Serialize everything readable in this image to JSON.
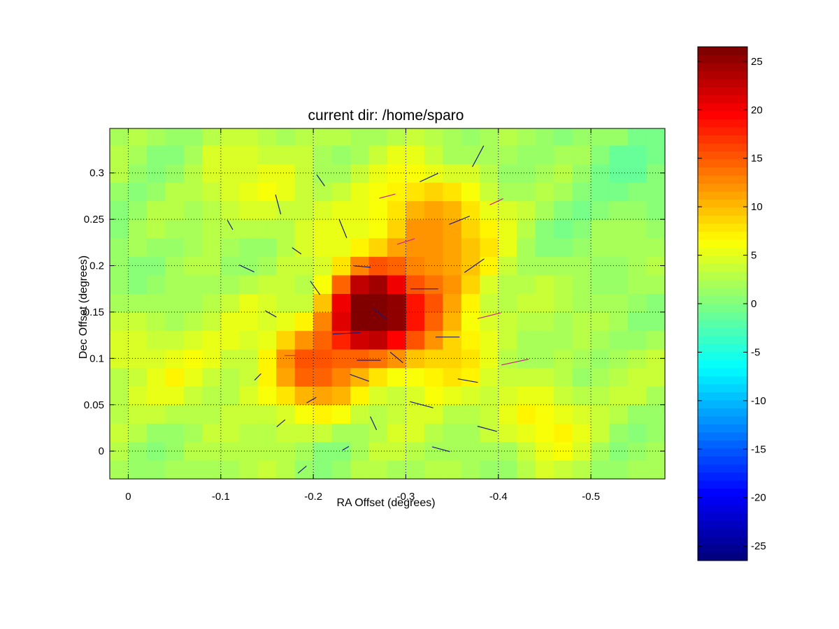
{
  "chart_data": {
    "type": "heatmap",
    "title": "current dir: /home/sparo",
    "xlabel": "RA Offset (degrees)",
    "ylabel": "Dec Offset (degrees)",
    "xlim": [
      0.02,
      -0.58
    ],
    "ylim": [
      -0.03,
      0.348
    ],
    "x_reversed": true,
    "grid": true,
    "grid_style": "dotted",
    "x_ticks": [
      0,
      -0.1,
      -0.2,
      -0.3,
      -0.4,
      -0.5
    ],
    "x_tick_labels": [
      "0",
      "-0.1",
      "-0.2",
      "-0.3",
      "-0.4",
      "-0.5"
    ],
    "y_ticks": [
      0,
      0.05,
      0.1,
      0.15,
      0.2,
      0.25,
      0.3
    ],
    "y_tick_labels": [
      "0",
      "0.05",
      "0.1",
      "0.15",
      "0.2",
      "0.25",
      "0.3"
    ],
    "colorbar": {
      "range": [
        -26.5,
        26.5
      ],
      "ticks": [
        25,
        20,
        15,
        10,
        5,
        0,
        -5,
        -10,
        -15,
        -20,
        -25
      ],
      "tick_labels": [
        "25",
        "20",
        "15",
        "10",
        "5",
        "0",
        "-5",
        "-10",
        "-15",
        "-20",
        "-25"
      ],
      "colormap": "jet"
    },
    "field_grid_step": 0.02,
    "field_components": [
      {
        "amp": 27.0,
        "ra": -0.258,
        "dec": 0.152,
        "sigma_ra": 0.028,
        "sigma_dec": 0.03
      },
      {
        "amp": 12.0,
        "ra": -0.2,
        "dec": 0.09,
        "sigma_ra": 0.035,
        "sigma_dec": 0.035
      },
      {
        "amp": 11.0,
        "ra": -0.32,
        "dec": 0.15,
        "sigma_ra": 0.045,
        "sigma_dec": 0.06
      },
      {
        "amp": 7.0,
        "ra": -0.33,
        "dec": 0.25,
        "sigma_ra": 0.05,
        "sigma_dec": 0.04
      },
      {
        "amp": 5.0,
        "ra": -0.45,
        "dec": 0.035,
        "sigma_ra": 0.035,
        "sigma_dec": 0.03
      },
      {
        "amp": 3.0,
        "ra": -0.14,
        "dec": 0.28,
        "sigma_ra": 0.06,
        "sigma_dec": 0.04
      },
      {
        "amp": 3.0,
        "ra": -0.05,
        "dec": 0.1,
        "sigma_ra": 0.08,
        "sigma_dec": 0.05
      },
      {
        "amp": -2.0,
        "ra": -0.53,
        "dec": 0.3,
        "sigma_ra": 0.06,
        "sigma_dec": 0.05
      },
      {
        "amp": -1.5,
        "ra": -0.02,
        "dec": 0.22,
        "sigma_ra": 0.05,
        "sigma_dec": 0.05
      }
    ],
    "field_baseline": 2.0,
    "vectors": [
      {
        "ra": -0.378,
        "dec": 0.318,
        "angle_deg": 62,
        "length": 0.026,
        "color": "navy"
      },
      {
        "ra": -0.325,
        "dec": 0.295,
        "angle_deg": 25,
        "length": 0.022,
        "color": "navy"
      },
      {
        "ra": -0.208,
        "dec": 0.292,
        "angle_deg": -55,
        "length": 0.015,
        "color": "navy"
      },
      {
        "ra": -0.162,
        "dec": 0.266,
        "angle_deg": -75,
        "length": 0.022,
        "color": "navy"
      },
      {
        "ra": -0.28,
        "dec": 0.275,
        "angle_deg": 15,
        "length": 0.018,
        "color": "magenta"
      },
      {
        "ra": -0.398,
        "dec": 0.269,
        "angle_deg": 25,
        "length": 0.016,
        "color": "magenta"
      },
      {
        "ra": -0.11,
        "dec": 0.244,
        "angle_deg": -60,
        "length": 0.012,
        "color": "navy"
      },
      {
        "ra": -0.232,
        "dec": 0.24,
        "angle_deg": -68,
        "length": 0.022,
        "color": "navy"
      },
      {
        "ra": -0.358,
        "dec": 0.249,
        "angle_deg": 22,
        "length": 0.024,
        "color": "navy"
      },
      {
        "ra": -0.3,
        "dec": 0.226,
        "angle_deg": 18,
        "length": 0.02,
        "color": "magenta"
      },
      {
        "ra": -0.182,
        "dec": 0.216,
        "angle_deg": -35,
        "length": 0.012,
        "color": "navy"
      },
      {
        "ra": -0.128,
        "dec": 0.197,
        "angle_deg": -25,
        "length": 0.018,
        "color": "navy"
      },
      {
        "ra": -0.253,
        "dec": 0.199,
        "angle_deg": -5,
        "length": 0.018,
        "color": "navy"
      },
      {
        "ra": -0.374,
        "dec": 0.2,
        "angle_deg": 35,
        "length": 0.026,
        "color": "navy"
      },
      {
        "ra": -0.202,
        "dec": 0.176,
        "angle_deg": -55,
        "length": 0.018,
        "color": "navy"
      },
      {
        "ra": -0.32,
        "dec": 0.175,
        "angle_deg": 0,
        "length": 0.03,
        "color": "navy"
      },
      {
        "ra": -0.272,
        "dec": 0.148,
        "angle_deg": -40,
        "length": 0.02,
        "color": "navy"
      },
      {
        "ra": -0.154,
        "dec": 0.148,
        "angle_deg": -30,
        "length": 0.014,
        "color": "navy"
      },
      {
        "ra": -0.39,
        "dec": 0.146,
        "angle_deg": 14,
        "length": 0.026,
        "color": "magenta"
      },
      {
        "ra": -0.236,
        "dec": 0.127,
        "angle_deg": 3,
        "length": 0.03,
        "color": "navy"
      },
      {
        "ra": -0.345,
        "dec": 0.123,
        "angle_deg": 0,
        "length": 0.026,
        "color": "navy"
      },
      {
        "ra": -0.175,
        "dec": 0.103,
        "angle_deg": 0,
        "length": 0.012,
        "color": "magenta"
      },
      {
        "ra": -0.29,
        "dec": 0.101,
        "angle_deg": -40,
        "length": 0.018,
        "color": "navy"
      },
      {
        "ra": -0.418,
        "dec": 0.096,
        "angle_deg": 12,
        "length": 0.03,
        "color": "magenta"
      },
      {
        "ra": -0.26,
        "dec": 0.098,
        "angle_deg": 0,
        "length": 0.026,
        "color": "navy"
      },
      {
        "ra": -0.14,
        "dec": 0.08,
        "angle_deg": 45,
        "length": 0.01,
        "color": "navy"
      },
      {
        "ra": -0.25,
        "dec": 0.079,
        "angle_deg": -20,
        "length": 0.022,
        "color": "navy"
      },
      {
        "ra": -0.367,
        "dec": 0.076,
        "angle_deg": -10,
        "length": 0.022,
        "color": "navy"
      },
      {
        "ra": -0.198,
        "dec": 0.055,
        "angle_deg": 30,
        "length": 0.012,
        "color": "navy"
      },
      {
        "ra": -0.317,
        "dec": 0.05,
        "angle_deg": -15,
        "length": 0.026,
        "color": "navy"
      },
      {
        "ra": -0.165,
        "dec": 0.03,
        "angle_deg": 40,
        "length": 0.012,
        "color": "navy"
      },
      {
        "ra": -0.265,
        "dec": 0.03,
        "angle_deg": -65,
        "length": 0.016,
        "color": "navy"
      },
      {
        "ra": -0.388,
        "dec": 0.024,
        "angle_deg": -15,
        "length": 0.022,
        "color": "navy"
      },
      {
        "ra": -0.235,
        "dec": 0.003,
        "angle_deg": 30,
        "length": 0.008,
        "color": "navy"
      },
      {
        "ra": -0.338,
        "dec": 0.002,
        "angle_deg": -15,
        "length": 0.02,
        "color": "navy"
      },
      {
        "ra": -0.188,
        "dec": -0.02,
        "angle_deg": 40,
        "length": 0.012,
        "color": "navy"
      }
    ]
  }
}
